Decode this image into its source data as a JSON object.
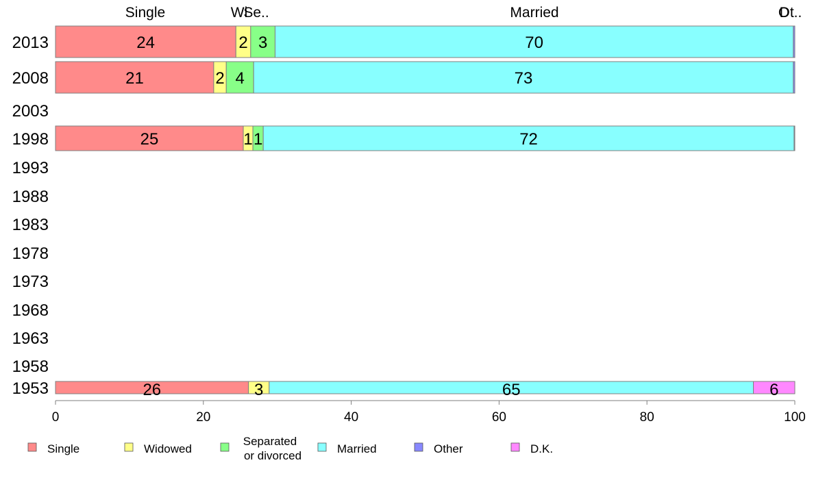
{
  "chart_data": {
    "type": "bar",
    "orientation": "horizontal",
    "stacked": true,
    "title": "",
    "xlabel": "",
    "ylabel": "",
    "xlim": [
      0,
      100
    ],
    "x_ticks": [
      "0",
      "20",
      "40",
      "60",
      "80",
      "100"
    ],
    "categories": [
      "2013",
      "2008",
      "2003",
      "1998",
      "1993",
      "1988",
      "1983",
      "1978",
      "1973",
      "1968",
      "1963",
      "1958",
      "1953"
    ],
    "series": [
      {
        "name": "Single",
        "color": "#ff8a8a",
        "values": [
          24.4,
          21.4,
          null,
          25.4,
          null,
          null,
          null,
          null,
          null,
          null,
          null,
          null,
          26.1
        ]
      },
      {
        "name": "Widowed",
        "color": "#ffff88",
        "values": [
          2.0,
          1.7,
          null,
          1.3,
          null,
          null,
          null,
          null,
          null,
          null,
          null,
          null,
          2.8
        ]
      },
      {
        "name": "Separated or divorced",
        "color": "#88ff88",
        "values": [
          3.3,
          3.7,
          null,
          1.4,
          null,
          null,
          null,
          null,
          null,
          null,
          null,
          null,
          0.0
        ]
      },
      {
        "name": "Married",
        "color": "#88ffff",
        "values": [
          70.1,
          73.0,
          null,
          71.8,
          null,
          null,
          null,
          null,
          null,
          null,
          null,
          null,
          65.5
        ]
      },
      {
        "name": "Other",
        "color": "#8888ff",
        "values": [
          0.2,
          0.2,
          null,
          0.1,
          null,
          null,
          null,
          null,
          null,
          null,
          null,
          null,
          0.0
        ]
      },
      {
        "name": "D.K.",
        "color": "#ff88ff",
        "values": [
          0.0,
          0.0,
          null,
          0.0,
          null,
          null,
          null,
          null,
          null,
          null,
          null,
          null,
          5.6
        ]
      }
    ],
    "segment_labels": [
      [
        "24",
        "2",
        "3",
        "70",
        "",
        ""
      ],
      [
        "21",
        "2",
        "4",
        "73",
        "",
        ""
      ],
      [
        "",
        "",
        "",
        "",
        "",
        ""
      ],
      [
        "25",
        "1",
        "1",
        "72",
        "",
        ""
      ],
      [
        "",
        "",
        "",
        "",
        "",
        ""
      ],
      [
        "",
        "",
        "",
        "",
        "",
        ""
      ],
      [
        "",
        "",
        "",
        "",
        "",
        ""
      ],
      [
        "",
        "",
        "",
        "",
        "",
        ""
      ],
      [
        "",
        "",
        "",
        "",
        "",
        ""
      ],
      [
        "",
        "",
        "",
        "",
        "",
        ""
      ],
      [
        "",
        "",
        "",
        "",
        "",
        ""
      ],
      [
        "",
        "",
        "",
        "",
        "",
        ""
      ],
      [
        "26",
        "3",
        "",
        "65",
        "",
        "6"
      ]
    ],
    "top_labels": [
      "Single",
      "Wi",
      "Se..",
      "Married",
      "O",
      "Dt.."
    ],
    "legend": {
      "placement": "bottom",
      "entries": [
        {
          "label": "Single",
          "color": "#ff8a8a"
        },
        {
          "label": "Widowed",
          "color": "#ffff88"
        },
        {
          "label": "Separated\nor divorced",
          "color": "#88ff88"
        },
        {
          "label": "Married",
          "color": "#88ffff"
        },
        {
          "label": "Other",
          "color": "#8888ff"
        },
        {
          "label": "D.K.",
          "color": "#ff88ff"
        }
      ]
    },
    "grid": false
  }
}
